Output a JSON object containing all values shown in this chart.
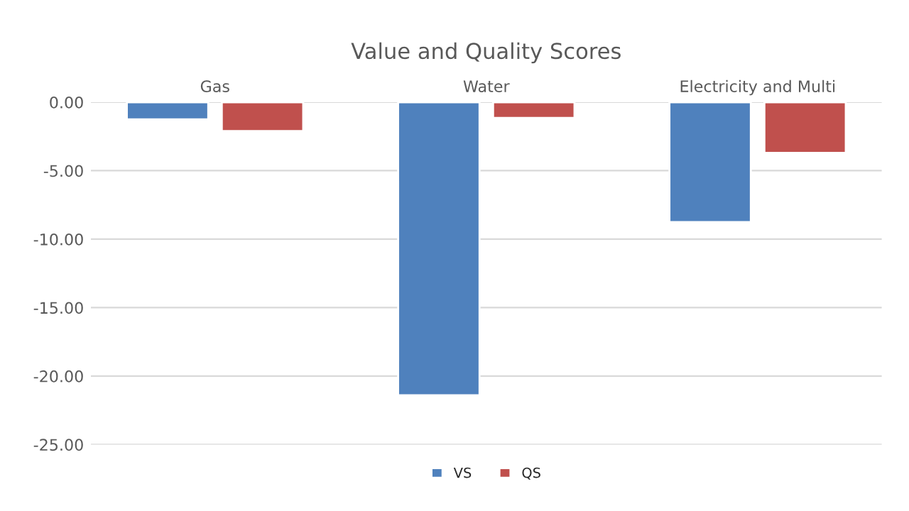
{
  "chart_data": {
    "type": "bar",
    "title": "Value and Quality Scores",
    "categories": [
      "Gas",
      "Water",
      "Electricity and Multi"
    ],
    "series": [
      {
        "name": "VS",
        "color": "#4f81bd",
        "values": [
          -1.25,
          -21.4,
          -8.75
        ]
      },
      {
        "name": "QS",
        "color": "#c0504d",
        "values": [
          -2.1,
          -1.15,
          -3.7
        ]
      }
    ],
    "ylim": [
      -25,
      0
    ],
    "yticks": [
      {
        "value": 0,
        "label": "0.00"
      },
      {
        "value": -5,
        "label": "-5.00"
      },
      {
        "value": -10,
        "label": "-10.00"
      },
      {
        "value": -15,
        "label": "-15.00"
      },
      {
        "value": -20,
        "label": "-20.00"
      },
      {
        "value": -25,
        "label": "-25.00"
      }
    ],
    "grid": "y",
    "legend": "bottom"
  }
}
